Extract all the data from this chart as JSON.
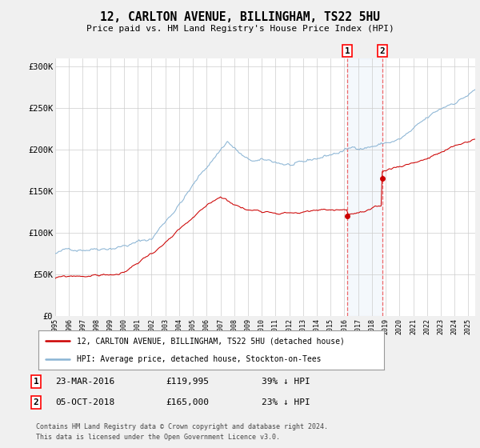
{
  "title": "12, CARLTON AVENUE, BILLINGHAM, TS22 5HU",
  "subtitle": "Price paid vs. HM Land Registry's House Price Index (HPI)",
  "ylim": [
    0,
    310000
  ],
  "xlim_start": 1995.0,
  "xlim_end": 2025.5,
  "hpi_color": "#8ab4d4",
  "price_color": "#cc0000",
  "transaction1_date": 2016.22,
  "transaction1_price": 119995,
  "transaction2_date": 2018.75,
  "transaction2_price": 165000,
  "legend_label1": "12, CARLTON AVENUE, BILLINGHAM, TS22 5HU (detached house)",
  "legend_label2": "HPI: Average price, detached house, Stockton-on-Tees",
  "note1_date": "23-MAR-2016",
  "note1_price": "£119,995",
  "note1_pct": "39% ↓ HPI",
  "note2_date": "05-OCT-2018",
  "note2_price": "£165,000",
  "note2_pct": "23% ↓ HPI",
  "footer": "Contains HM Land Registry data © Crown copyright and database right 2024.\nThis data is licensed under the Open Government Licence v3.0.",
  "background_color": "#f0f0f0",
  "plot_bg_color": "#ffffff",
  "grid_color": "#cccccc",
  "yticks": [
    0,
    50000,
    100000,
    150000,
    200000,
    250000,
    300000
  ],
  "ytick_labels": [
    "£0",
    "£50K",
    "£100K",
    "£150K",
    "£200K",
    "£250K",
    "£300K"
  ]
}
